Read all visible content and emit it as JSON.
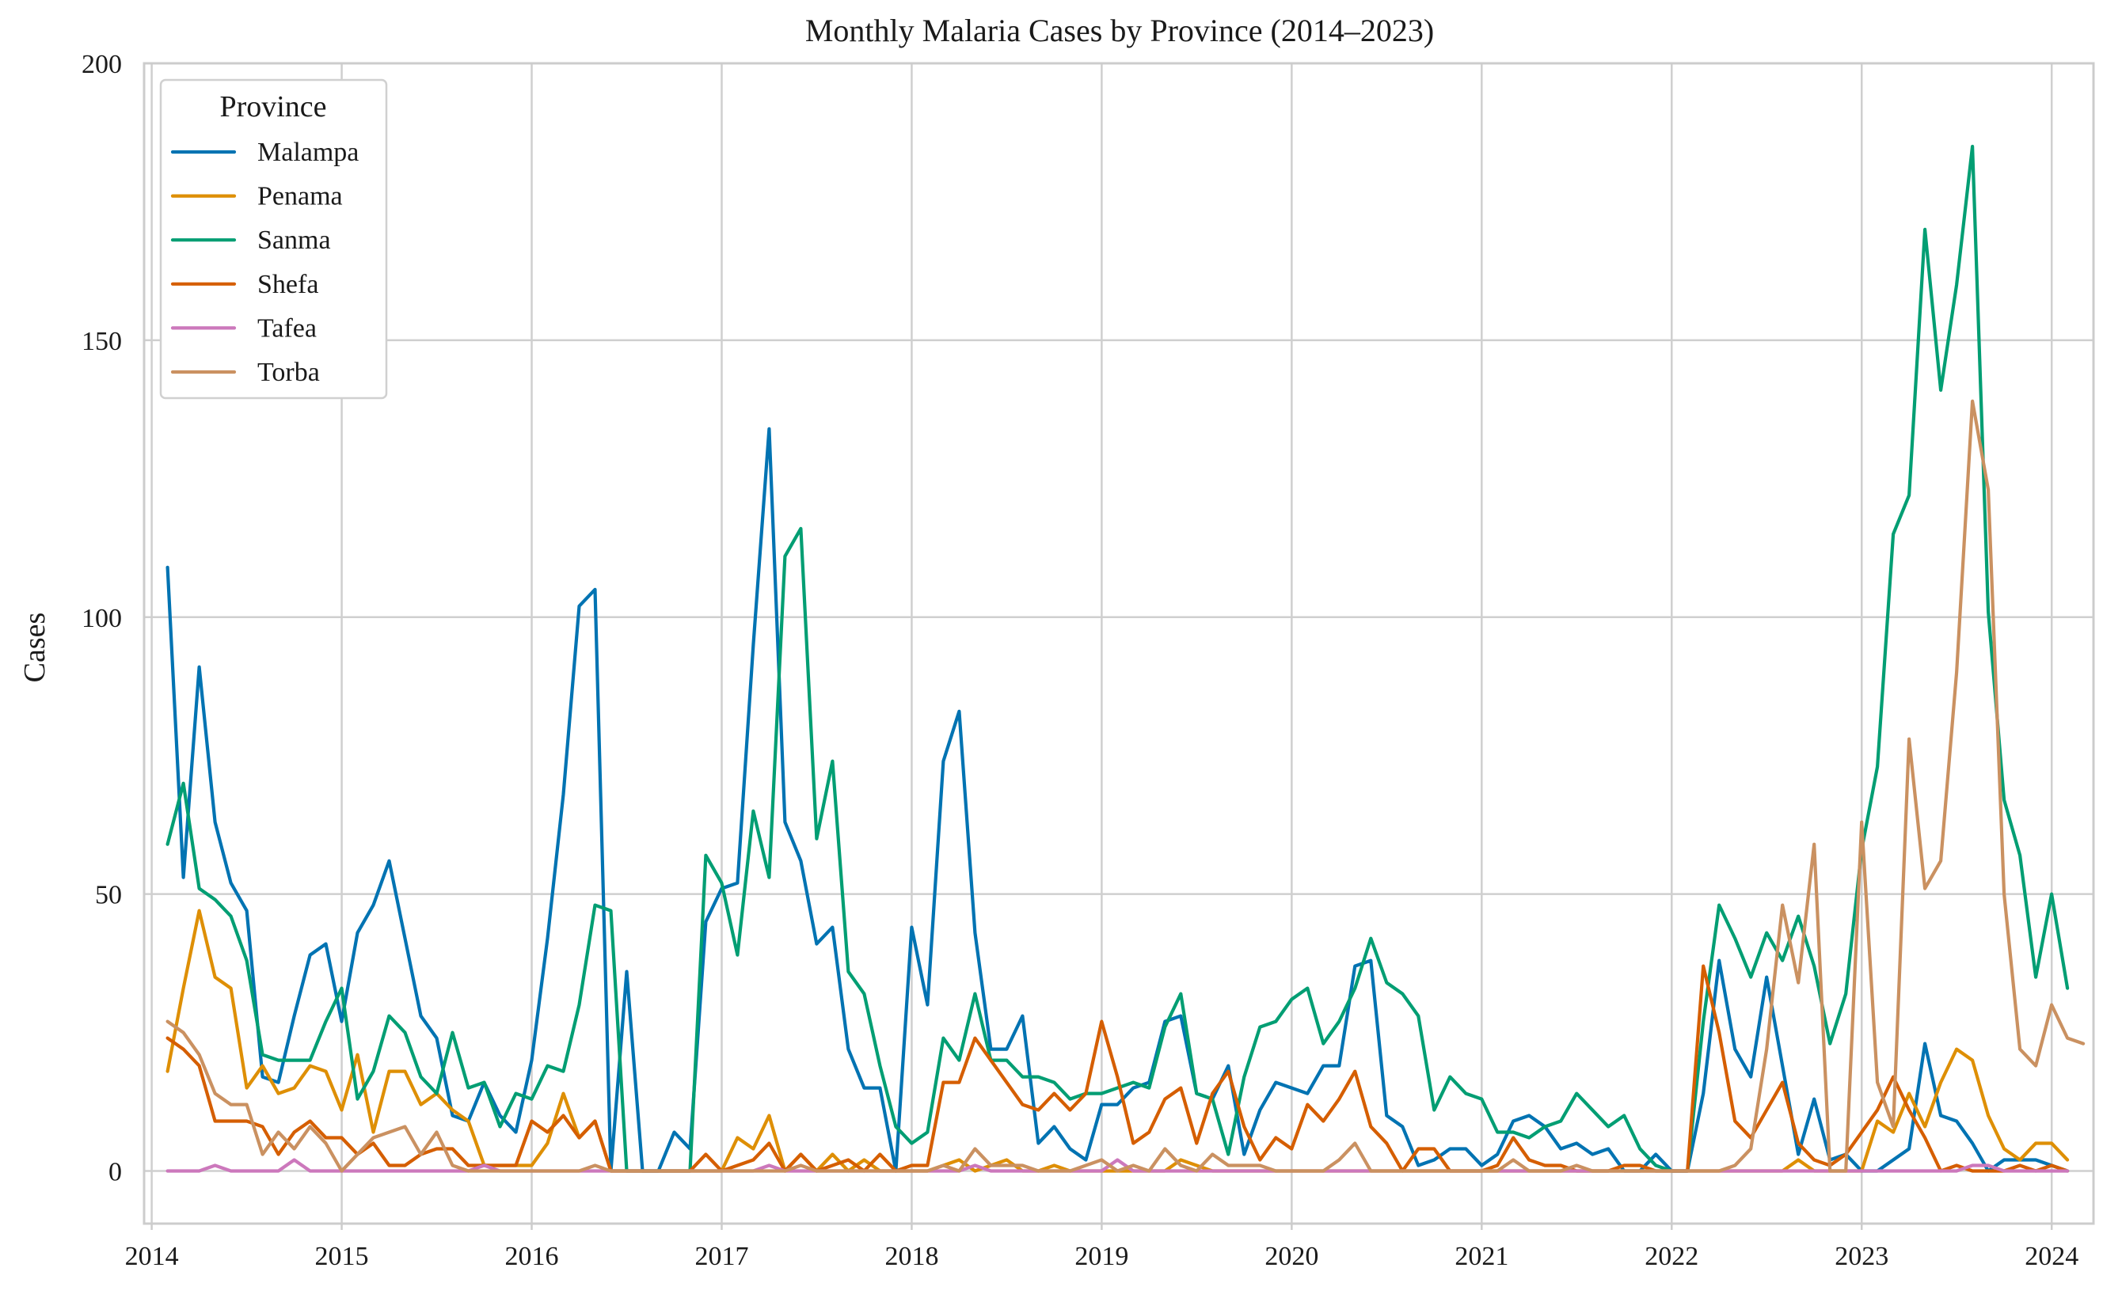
{
  "chart_data": {
    "type": "line",
    "title": "Monthly Malaria Cases by Province (2014–2023)",
    "xlabel": "",
    "ylabel": "Cases",
    "xlim": [
      2013.96,
      2024.22
    ],
    "ylim": [
      -9.5,
      200
    ],
    "xticks": [
      2014,
      2015,
      2016,
      2017,
      2018,
      2019,
      2020,
      2021,
      2022,
      2023,
      2024
    ],
    "xtick_labels": [
      "2014",
      "2015",
      "2016",
      "2017",
      "2018",
      "2019",
      "2020",
      "2021",
      "2022",
      "2023",
      "2024"
    ],
    "yticks": [
      0,
      50,
      100,
      150,
      200
    ],
    "ytick_labels": [
      "0",
      "50",
      "100",
      "150",
      "200"
    ],
    "grid": true,
    "legend": {
      "title": "Province",
      "placement": "top-left"
    },
    "x_start": 2014.0833,
    "x_step": 0.08333,
    "series": [
      {
        "name": "Malampa",
        "color": "#0173b2",
        "values": [
          109,
          53,
          91,
          63,
          52,
          47,
          17,
          16,
          28,
          39,
          41,
          27,
          43,
          48,
          56,
          42,
          28,
          24,
          10,
          9,
          16,
          10,
          7,
          20,
          42,
          68,
          102,
          105,
          0,
          36,
          0,
          0,
          7,
          4,
          45,
          51,
          52,
          95,
          134,
          63,
          56,
          41,
          44,
          22,
          15,
          15,
          0,
          44,
          30,
          74,
          83,
          43,
          22,
          22,
          28,
          5,
          8,
          4,
          2,
          12,
          12,
          15,
          16,
          27,
          28,
          14,
          13,
          19,
          3,
          11,
          16,
          15,
          14,
          19,
          19,
          37,
          38,
          10,
          8,
          1,
          2,
          4,
          4,
          1,
          3,
          9,
          10,
          8,
          4,
          5,
          3,
          4,
          0,
          0,
          3,
          0,
          0,
          14,
          38,
          22,
          17,
          35,
          19,
          3,
          13,
          2,
          3,
          0,
          0,
          2,
          4,
          23,
          10,
          9,
          5,
          0,
          2,
          2,
          2,
          1,
          0
        ]
      },
      {
        "name": "Penama",
        "color": "#de8f05",
        "values": [
          18,
          33,
          47,
          35,
          33,
          15,
          19,
          14,
          15,
          19,
          18,
          11,
          21,
          7,
          18,
          18,
          12,
          14,
          11,
          9,
          1,
          1,
          1,
          1,
          5,
          14,
          6,
          9,
          0,
          0,
          0,
          0,
          0,
          0,
          0,
          0,
          6,
          4,
          10,
          0,
          3,
          0,
          3,
          0,
          2,
          0,
          0,
          0,
          0,
          1,
          2,
          0,
          1,
          2,
          0,
          0,
          1,
          0,
          0,
          0,
          0,
          0,
          0,
          0,
          2,
          1,
          0,
          0,
          0,
          0,
          0,
          0,
          0,
          0,
          0,
          0,
          0,
          0,
          0,
          0,
          0,
          0,
          0,
          0,
          0,
          0,
          0,
          0,
          0,
          0,
          0,
          0,
          0,
          0,
          0,
          0,
          0,
          0,
          0,
          0,
          0,
          0,
          0,
          2,
          0,
          0,
          0,
          0,
          9,
          7,
          14,
          8,
          16,
          22,
          20,
          10,
          4,
          2,
          5,
          5,
          2
        ]
      },
      {
        "name": "Sanma",
        "color": "#029e73",
        "values": [
          59,
          70,
          51,
          49,
          46,
          38,
          21,
          20,
          20,
          20,
          27,
          33,
          13,
          18,
          28,
          25,
          17,
          14,
          25,
          15,
          16,
          8,
          14,
          13,
          19,
          18,
          30,
          48,
          47,
          0,
          0,
          0,
          0,
          0,
          57,
          52,
          39,
          65,
          53,
          111,
          116,
          60,
          74,
          36,
          32,
          19,
          8,
          5,
          7,
          24,
          20,
          32,
          20,
          20,
          17,
          17,
          16,
          13,
          14,
          14,
          15,
          16,
          15,
          26,
          32,
          14,
          13,
          3,
          17,
          26,
          27,
          31,
          33,
          23,
          27,
          33,
          42,
          34,
          32,
          28,
          11,
          17,
          14,
          13,
          7,
          7,
          6,
          8,
          9,
          14,
          11,
          8,
          10,
          4,
          1,
          0,
          0,
          27,
          48,
          42,
          35,
          43,
          38,
          46,
          37,
          23,
          32,
          58,
          73,
          115,
          122,
          170,
          141,
          160,
          185,
          101,
          67,
          57,
          35,
          50,
          33
        ]
      },
      {
        "name": "Shefa",
        "color": "#d55e00",
        "values": [
          24,
          22,
          19,
          9,
          9,
          9,
          8,
          3,
          7,
          9,
          6,
          6,
          3,
          5,
          1,
          1,
          3,
          4,
          4,
          1,
          1,
          1,
          1,
          9,
          7,
          10,
          6,
          9,
          0,
          0,
          0,
          0,
          0,
          0,
          3,
          0,
          1,
          2,
          5,
          0,
          3,
          0,
          1,
          2,
          0,
          3,
          0,
          1,
          1,
          16,
          16,
          24,
          20,
          16,
          12,
          11,
          14,
          11,
          14,
          27,
          17,
          5,
          7,
          13,
          15,
          5,
          14,
          18,
          8,
          2,
          6,
          4,
          12,
          9,
          13,
          18,
          8,
          5,
          0,
          4,
          4,
          0,
          0,
          0,
          1,
          6,
          2,
          1,
          1,
          0,
          0,
          0,
          1,
          1,
          0,
          0,
          0,
          37,
          25,
          9,
          6,
          11,
          16,
          5,
          2,
          1,
          3,
          7,
          11,
          17,
          11,
          6,
          0,
          1,
          0,
          0,
          0,
          1,
          0,
          1,
          0
        ]
      },
      {
        "name": "Tafea",
        "color": "#cc78bc",
        "values": [
          0,
          0,
          0,
          1,
          0,
          0,
          0,
          0,
          2,
          0,
          0,
          0,
          0,
          0,
          0,
          0,
          0,
          0,
          0,
          0,
          1,
          0,
          0,
          0,
          0,
          0,
          0,
          0,
          0,
          0,
          0,
          0,
          0,
          0,
          0,
          0,
          0,
          0,
          1,
          0,
          0,
          0,
          0,
          0,
          0,
          0,
          0,
          0,
          0,
          0,
          0,
          1,
          0,
          0,
          0,
          0,
          0,
          0,
          0,
          0,
          2,
          0,
          0,
          0,
          0,
          0,
          0,
          0,
          0,
          0,
          0,
          0,
          0,
          0,
          0,
          0,
          0,
          0,
          0,
          0,
          0,
          0,
          0,
          0,
          0,
          0,
          0,
          0,
          0,
          0,
          0,
          0,
          0,
          0,
          0,
          0,
          0,
          0,
          0,
          0,
          0,
          0,
          0,
          0,
          0,
          0,
          0,
          0,
          0,
          0,
          0,
          0,
          0,
          0,
          1,
          1,
          0,
          0,
          0,
          0,
          0
        ]
      },
      {
        "name": "Torba",
        "color": "#ca9161",
        "values": [
          27,
          25,
          21,
          14,
          12,
          12,
          3,
          7,
          4,
          8,
          5,
          0,
          3,
          6,
          7,
          8,
          3,
          7,
          1,
          0,
          0,
          0,
          0,
          0,
          0,
          0,
          0,
          1,
          0,
          0,
          0,
          0,
          0,
          0,
          0,
          0,
          0,
          0,
          0,
          0,
          1,
          0,
          0,
          0,
          0,
          0,
          0,
          0,
          0,
          1,
          0,
          4,
          1,
          1,
          1,
          0,
          0,
          0,
          1,
          2,
          0,
          1,
          0,
          4,
          1,
          0,
          3,
          1,
          1,
          1,
          0,
          0,
          0,
          0,
          2,
          5,
          0,
          0,
          0,
          0,
          0,
          0,
          0,
          0,
          0,
          2,
          0,
          0,
          0,
          1,
          0,
          0,
          0,
          0,
          0,
          0,
          0,
          0,
          0,
          1,
          4,
          22,
          48,
          34,
          59,
          0,
          0,
          63,
          16,
          8,
          78,
          51,
          56,
          90,
          139,
          123,
          50,
          22,
          19,
          30,
          24,
          23
        ]
      }
    ]
  }
}
